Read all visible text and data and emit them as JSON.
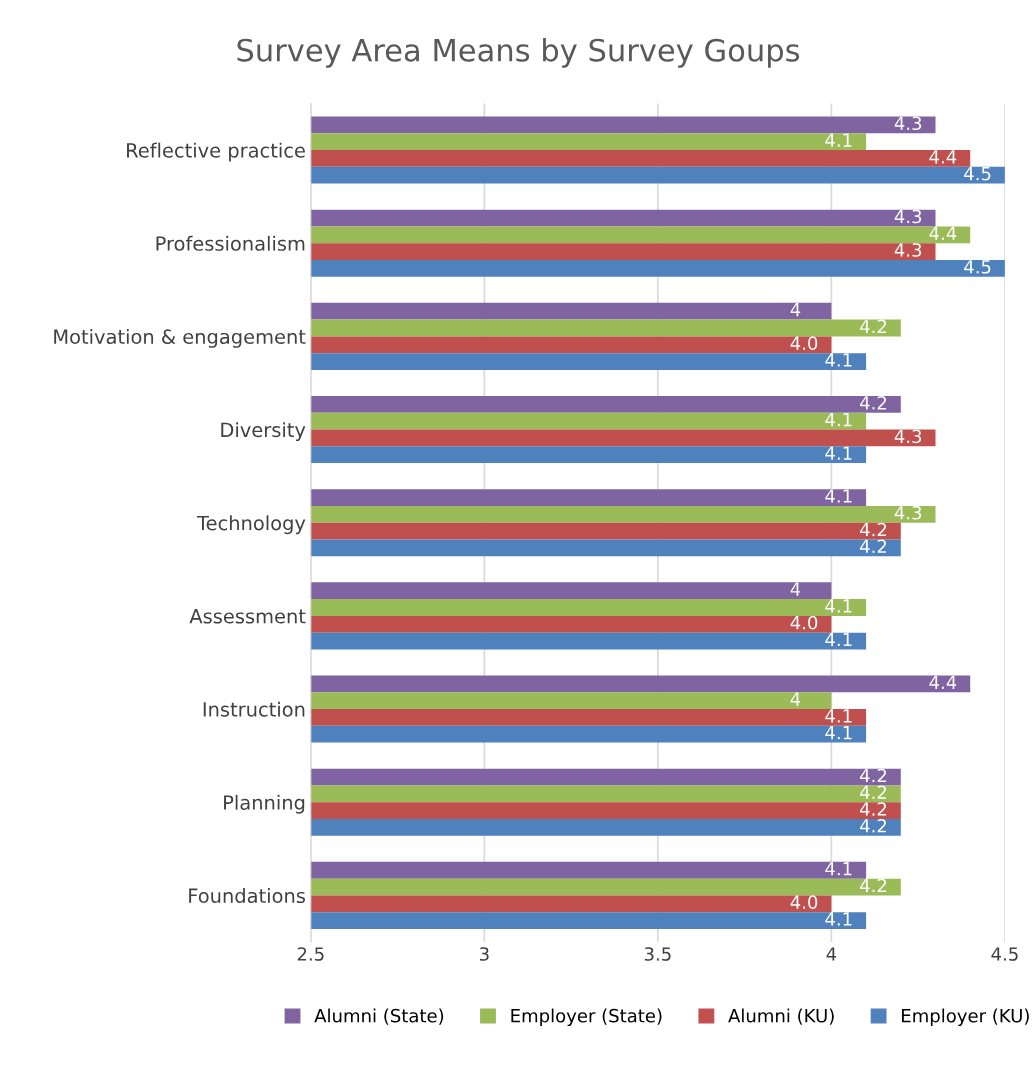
{
  "chart_data": {
    "type": "bar",
    "orientation": "horizontal",
    "title": "Survey Area Means by Survey Goups",
    "categories": [
      "Reflective practice",
      "Professionalism",
      "Motivation & engagement",
      "Diversity",
      "Technology",
      "Assessment",
      "Instruction",
      "Planning",
      "Foundations"
    ],
    "series": [
      {
        "name": "Alumni (State)",
        "color": "#8064a2",
        "values": [
          4.3,
          4.3,
          4,
          4.2,
          4.1,
          4,
          4.4,
          4.2,
          4.1
        ],
        "value_labels": [
          "4.3",
          "4.3",
          "4",
          "4.2",
          "4.1",
          "4",
          "4.4",
          "4.2",
          "4.1"
        ]
      },
      {
        "name": "Employer (State)",
        "color": "#9bbb59",
        "values": [
          4.1,
          4.4,
          4.2,
          4.1,
          4.3,
          4.1,
          4,
          4.2,
          4.2
        ],
        "value_labels": [
          "4.1",
          "4.4",
          "4.2",
          "4.1",
          "4.3",
          "4.1",
          "4",
          "4.2",
          "4.2"
        ]
      },
      {
        "name": "Alumni (KU)",
        "color": "#c0504d",
        "values": [
          4.4,
          4.3,
          4.0,
          4.3,
          4.2,
          4.0,
          4.1,
          4.2,
          4.0
        ],
        "value_labels": [
          "4.4",
          "4.3",
          "4.0",
          "4.3",
          "4.2",
          "4.0",
          "4.1",
          "4.2",
          "4.0"
        ]
      },
      {
        "name": "Employer (KU)",
        "color": "#4f81bd",
        "values": [
          4.5,
          4.5,
          4.1,
          4.1,
          4.2,
          4.1,
          4.1,
          4.2,
          4.1
        ],
        "value_labels": [
          "4.5",
          "4.5",
          "4.1",
          "4.1",
          "4.2",
          "4.1",
          "4.1",
          "4.2",
          "4.1"
        ]
      }
    ],
    "xlim": [
      2.5,
      4.5
    ],
    "xticks": [
      2.5,
      3,
      3.5,
      4,
      4.5
    ],
    "grid": "x",
    "legend": "bottom"
  }
}
